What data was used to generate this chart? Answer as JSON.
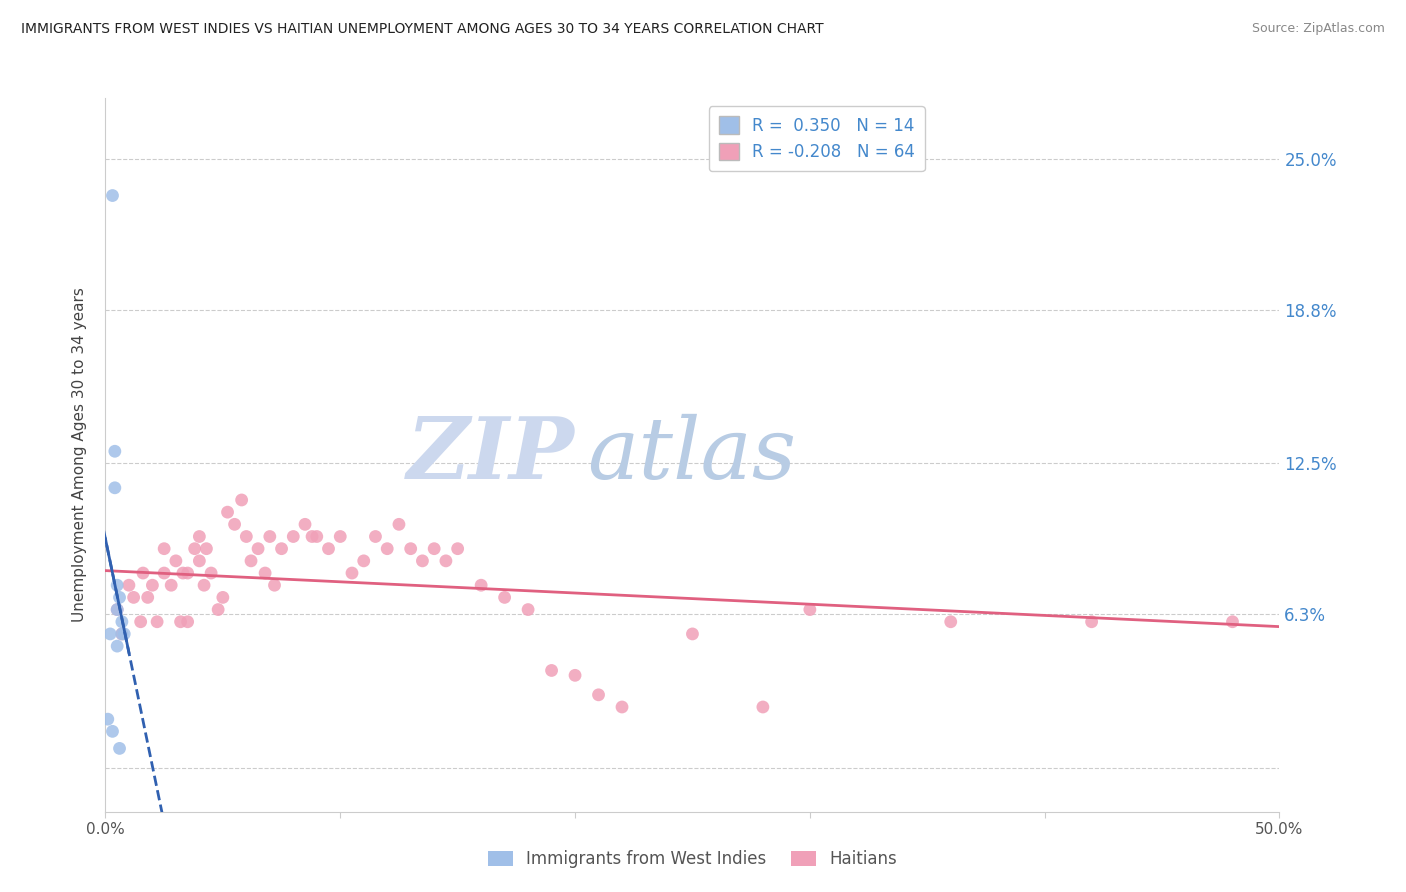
{
  "title": "IMMIGRANTS FROM WEST INDIES VS HAITIAN UNEMPLOYMENT AMONG AGES 30 TO 34 YEARS CORRELATION CHART",
  "source": "Source: ZipAtlas.com",
  "ylabel": "Unemployment Among Ages 30 to 34 years",
  "xlim": [
    0.0,
    0.5
  ],
  "ylim": [
    -0.018,
    0.275
  ],
  "yticks": [
    0.0,
    0.063,
    0.125,
    0.188,
    0.25
  ],
  "ytick_labels": [
    "",
    "6.3%",
    "12.5%",
    "18.8%",
    "25.0%"
  ],
  "xticks": [
    0.0,
    0.1,
    0.2,
    0.3,
    0.4,
    0.5
  ],
  "xtick_labels": [
    "0.0%",
    "",
    "",
    "",
    "",
    "50.0%"
  ],
  "blue_R": 0.35,
  "blue_N": 14,
  "pink_R": -0.208,
  "pink_N": 64,
  "blue_color": "#a0bfe8",
  "pink_color": "#f0a0b8",
  "blue_line_color": "#3060b0",
  "pink_line_color": "#e06080",
  "watermark_zip_color": "#c8d4ea",
  "watermark_atlas_color": "#b0c4e0",
  "blue_scatter_x": [
    0.003,
    0.004,
    0.004,
    0.005,
    0.005,
    0.005,
    0.006,
    0.006,
    0.007,
    0.007,
    0.008,
    0.002,
    0.001,
    0.003
  ],
  "blue_scatter_y": [
    0.235,
    0.13,
    0.115,
    0.075,
    0.065,
    0.05,
    0.07,
    0.008,
    0.06,
    0.055,
    0.055,
    0.055,
    0.02,
    0.015
  ],
  "pink_scatter_x": [
    0.005,
    0.007,
    0.01,
    0.012,
    0.015,
    0.016,
    0.018,
    0.02,
    0.022,
    0.025,
    0.025,
    0.028,
    0.03,
    0.032,
    0.033,
    0.035,
    0.035,
    0.038,
    0.04,
    0.04,
    0.042,
    0.043,
    0.045,
    0.048,
    0.05,
    0.052,
    0.055,
    0.058,
    0.06,
    0.062,
    0.065,
    0.068,
    0.07,
    0.072,
    0.075,
    0.08,
    0.085,
    0.088,
    0.09,
    0.095,
    0.1,
    0.105,
    0.11,
    0.115,
    0.12,
    0.125,
    0.13,
    0.135,
    0.14,
    0.145,
    0.15,
    0.16,
    0.17,
    0.18,
    0.19,
    0.2,
    0.21,
    0.22,
    0.25,
    0.28,
    0.3,
    0.36,
    0.42,
    0.48
  ],
  "pink_scatter_y": [
    0.065,
    0.055,
    0.075,
    0.07,
    0.06,
    0.08,
    0.07,
    0.075,
    0.06,
    0.08,
    0.09,
    0.075,
    0.085,
    0.06,
    0.08,
    0.06,
    0.08,
    0.09,
    0.085,
    0.095,
    0.075,
    0.09,
    0.08,
    0.065,
    0.07,
    0.105,
    0.1,
    0.11,
    0.095,
    0.085,
    0.09,
    0.08,
    0.095,
    0.075,
    0.09,
    0.095,
    0.1,
    0.095,
    0.095,
    0.09,
    0.095,
    0.08,
    0.085,
    0.095,
    0.09,
    0.1,
    0.09,
    0.085,
    0.09,
    0.085,
    0.09,
    0.075,
    0.07,
    0.065,
    0.04,
    0.038,
    0.03,
    0.025,
    0.055,
    0.025,
    0.065,
    0.06,
    0.06,
    0.06
  ],
  "blue_line_x": [
    0.0,
    0.03
  ],
  "pink_line_x_start": 0.0,
  "pink_line_x_end": 0.5,
  "pink_line_y_start": 0.081,
  "pink_line_y_end": 0.058
}
